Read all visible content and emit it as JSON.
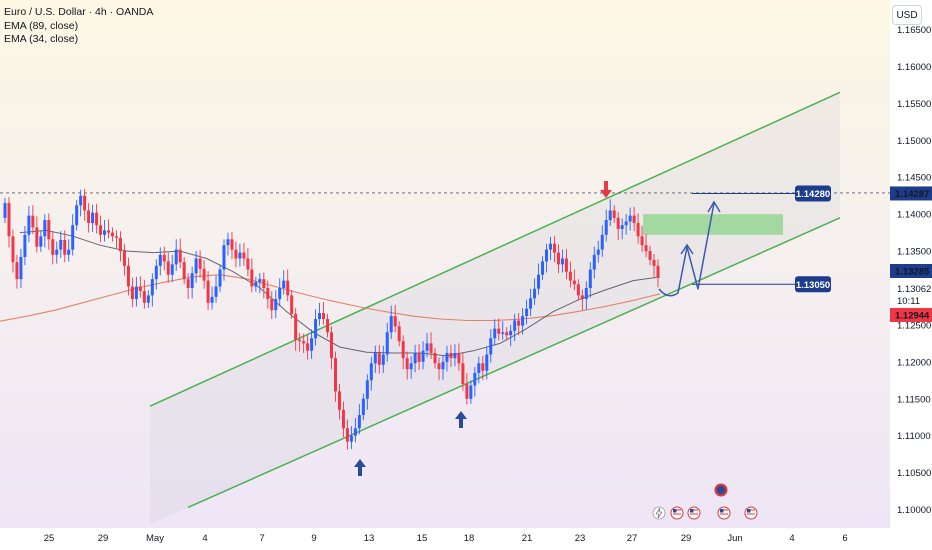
{
  "legend": {
    "symbol_line": "Euro / U.S. Dollar · 4h · OANDA",
    "ema_slow": "EMA (89, close)",
    "ema_fast": "EMA (34, close)"
  },
  "currency_button": "USD",
  "colors": {
    "up_candle": "#2962ff",
    "down_candle": "#f23645",
    "channel_line": "#4caf50",
    "ema_89": "#e0704f",
    "ema_34": "#4a4e5a",
    "arrow_down": "#e53945",
    "arrow_up": "#2a4a9c",
    "target_zone": "#8bd48a",
    "projection": "#3a5ab0",
    "price_tag_dark": "#1e3c8c",
    "price_tag_red": "#f23645"
  },
  "price_scale": {
    "labels": [
      "1.16500",
      "1.16000",
      "1.15500",
      "1.15000",
      "1.14500",
      "1.14000",
      "1.13500",
      "1.13000",
      "1.12500",
      "1.12000",
      "1.11500",
      "1.11000",
      "1.10500",
      "1.10000"
    ],
    "current_price": "1.13285",
    "countdown_price": "1.13062",
    "countdown": "10:11",
    "ema_price": "1.12944",
    "resistance_price": "1.14287"
  },
  "time_axis": {
    "labels": [
      "25",
      "29",
      "May",
      "4",
      "7",
      "9",
      "13",
      "15",
      "18",
      "21",
      "23",
      "27",
      "29",
      "Jun",
      "4",
      "6"
    ]
  },
  "annotations": {
    "resistance_label": "1.14280",
    "support_label": "1.13050"
  },
  "chart_data": {
    "type": "candlestick",
    "symbol": "Euro / U.S. Dollar",
    "timeframe": "4h",
    "source": "OANDA",
    "ylim": [
      1.0975,
      1.169
    ],
    "x_dates": [
      "Apr 25",
      "Apr 29",
      "May",
      "May 4",
      "May 7",
      "May 9",
      "May 13",
      "May 15",
      "May 18",
      "May 21",
      "May 23",
      "May 27",
      "May 29",
      "Jun",
      "Jun 4",
      "Jun 6"
    ],
    "candles": [
      {
        "o": 1.1395,
        "c": 1.1415
      },
      {
        "o": 1.1415,
        "c": 1.137
      },
      {
        "o": 1.137,
        "c": 1.1335
      },
      {
        "o": 1.1335,
        "c": 1.1312
      },
      {
        "o": 1.1312,
        "c": 1.1342
      },
      {
        "o": 1.1342,
        "c": 1.1372
      },
      {
        "o": 1.1372,
        "c": 1.1398
      },
      {
        "o": 1.1398,
        "c": 1.1382
      },
      {
        "o": 1.1382,
        "c": 1.1356
      },
      {
        "o": 1.1356,
        "c": 1.137
      },
      {
        "o": 1.137,
        "c": 1.1392
      },
      {
        "o": 1.1392,
        "c": 1.1366
      },
      {
        "o": 1.1366,
        "c": 1.1345
      },
      {
        "o": 1.1345,
        "c": 1.1352
      },
      {
        "o": 1.1352,
        "c": 1.1365
      },
      {
        "o": 1.1365,
        "c": 1.1345
      },
      {
        "o": 1.1345,
        "c": 1.1352
      },
      {
        "o": 1.1352,
        "c": 1.1385
      },
      {
        "o": 1.1385,
        "c": 1.1412
      },
      {
        "o": 1.1412,
        "c": 1.1425
      },
      {
        "o": 1.1425,
        "c": 1.1405
      },
      {
        "o": 1.1405,
        "c": 1.1388
      },
      {
        "o": 1.1388,
        "c": 1.1402
      },
      {
        "o": 1.1402,
        "c": 1.1385
      },
      {
        "o": 1.1385,
        "c": 1.1372
      },
      {
        "o": 1.1372,
        "c": 1.1378
      },
      {
        "o": 1.1378,
        "c": 1.1375
      },
      {
        "o": 1.1375,
        "c": 1.137
      },
      {
        "o": 1.137,
        "c": 1.1368
      },
      {
        "o": 1.1368,
        "c": 1.135
      },
      {
        "o": 1.135,
        "c": 1.133
      },
      {
        "o": 1.133,
        "c": 1.1302
      },
      {
        "o": 1.1302,
        "c": 1.1285
      },
      {
        "o": 1.1285,
        "c": 1.1302
      },
      {
        "o": 1.1302,
        "c": 1.1296
      },
      {
        "o": 1.1296,
        "c": 1.128
      },
      {
        "o": 1.128,
        "c": 1.129
      },
      {
        "o": 1.129,
        "c": 1.1312
      },
      {
        "o": 1.1312,
        "c": 1.133
      },
      {
        "o": 1.133,
        "c": 1.1345
      },
      {
        "o": 1.1345,
        "c": 1.1336
      },
      {
        "o": 1.1336,
        "c": 1.1318
      },
      {
        "o": 1.1318,
        "c": 1.1332
      },
      {
        "o": 1.1332,
        "c": 1.1352
      },
      {
        "o": 1.1352,
        "c": 1.1335
      },
      {
        "o": 1.1335,
        "c": 1.1312
      },
      {
        "o": 1.1312,
        "c": 1.13
      },
      {
        "o": 1.13,
        "c": 1.132
      },
      {
        "o": 1.132,
        "c": 1.134
      },
      {
        "o": 1.134,
        "c": 1.1326
      },
      {
        "o": 1.1326,
        "c": 1.131
      },
      {
        "o": 1.131,
        "c": 1.128
      },
      {
        "o": 1.128,
        "c": 1.1288
      },
      {
        "o": 1.1288,
        "c": 1.1302
      },
      {
        "o": 1.1302,
        "c": 1.1325
      },
      {
        "o": 1.1325,
        "c": 1.1358
      },
      {
        "o": 1.1358,
        "c": 1.1366
      },
      {
        "o": 1.1366,
        "c": 1.1352
      },
      {
        "o": 1.1352,
        "c": 1.134
      },
      {
        "o": 1.134,
        "c": 1.1348
      },
      {
        "o": 1.1348,
        "c": 1.134
      },
      {
        "o": 1.134,
        "c": 1.1325
      },
      {
        "o": 1.1325,
        "c": 1.1302
      },
      {
        "o": 1.1302,
        "c": 1.1308
      },
      {
        "o": 1.1308,
        "c": 1.1312
      },
      {
        "o": 1.1312,
        "c": 1.13
      },
      {
        "o": 1.13,
        "c": 1.1285
      },
      {
        "o": 1.1285,
        "c": 1.127
      },
      {
        "o": 1.127,
        "c": 1.1285
      },
      {
        "o": 1.1285,
        "c": 1.13
      },
      {
        "o": 1.13,
        "c": 1.131
      },
      {
        "o": 1.131,
        "c": 1.129
      },
      {
        "o": 1.129,
        "c": 1.1265
      },
      {
        "o": 1.1265,
        "c": 1.123
      },
      {
        "o": 1.123,
        "c": 1.1228
      },
      {
        "o": 1.1228,
        "c": 1.1225
      },
      {
        "o": 1.1225,
        "c": 1.1215
      },
      {
        "o": 1.1215,
        "c": 1.1232
      },
      {
        "o": 1.1232,
        "c": 1.1258
      },
      {
        "o": 1.1258,
        "c": 1.1266
      },
      {
        "o": 1.1266,
        "c": 1.1258
      },
      {
        "o": 1.1258,
        "c": 1.124
      },
      {
        "o": 1.124,
        "c": 1.1205
      },
      {
        "o": 1.1205,
        "c": 1.116
      },
      {
        "o": 1.116,
        "c": 1.1135
      },
      {
        "o": 1.1135,
        "c": 1.111
      },
      {
        "o": 1.111,
        "c": 1.1092
      },
      {
        "o": 1.1092,
        "c": 1.11
      },
      {
        "o": 1.11,
        "c": 1.111
      },
      {
        "o": 1.111,
        "c": 1.1128
      },
      {
        "o": 1.1128,
        "c": 1.115
      },
      {
        "o": 1.115,
        "c": 1.1175
      },
      {
        "o": 1.1175,
        "c": 1.1198
      },
      {
        "o": 1.1198,
        "c": 1.1212
      },
      {
        "o": 1.1212,
        "c": 1.1196
      },
      {
        "o": 1.1196,
        "c": 1.121
      },
      {
        "o": 1.121,
        "c": 1.124
      },
      {
        "o": 1.124,
        "c": 1.1262
      },
      {
        "o": 1.1262,
        "c": 1.1248
      },
      {
        "o": 1.1248,
        "c": 1.1228
      },
      {
        "o": 1.1228,
        "c": 1.1205
      },
      {
        "o": 1.1205,
        "c": 1.119
      },
      {
        "o": 1.119,
        "c": 1.1198
      },
      {
        "o": 1.1198,
        "c": 1.1212
      },
      {
        "o": 1.1212,
        "c": 1.12
      },
      {
        "o": 1.12,
        "c": 1.1215
      },
      {
        "o": 1.1215,
        "c": 1.1225
      },
      {
        "o": 1.1225,
        "c": 1.1212
      },
      {
        "o": 1.1212,
        "c": 1.1198
      },
      {
        "o": 1.1198,
        "c": 1.119
      },
      {
        "o": 1.119,
        "c": 1.12
      },
      {
        "o": 1.12,
        "c": 1.1212
      },
      {
        "o": 1.1212,
        "c": 1.1205
      },
      {
        "o": 1.1205,
        "c": 1.1212
      },
      {
        "o": 1.1212,
        "c": 1.1198
      },
      {
        "o": 1.1198,
        "c": 1.117
      },
      {
        "o": 1.117,
        "c": 1.115
      },
      {
        "o": 1.115,
        "c": 1.1168
      },
      {
        "o": 1.1168,
        "c": 1.1185
      },
      {
        "o": 1.1185,
        "c": 1.1198
      },
      {
        "o": 1.1198,
        "c": 1.1188
      },
      {
        "o": 1.1188,
        "c": 1.121
      },
      {
        "o": 1.121,
        "c": 1.1232
      },
      {
        "o": 1.1232,
        "c": 1.1245
      },
      {
        "o": 1.1245,
        "c": 1.1238
      },
      {
        "o": 1.1238,
        "c": 1.124
      },
      {
        "o": 1.124,
        "c": 1.1236
      },
      {
        "o": 1.1236,
        "c": 1.1242
      },
      {
        "o": 1.1242,
        "c": 1.1256
      },
      {
        "o": 1.1256,
        "c": 1.1249
      },
      {
        "o": 1.1249,
        "c": 1.1262
      },
      {
        "o": 1.1262,
        "c": 1.1272
      },
      {
        "o": 1.1272,
        "c": 1.1286
      },
      {
        "o": 1.1286,
        "c": 1.1299
      },
      {
        "o": 1.1299,
        "c": 1.1318
      },
      {
        "o": 1.1318,
        "c": 1.1336
      },
      {
        "o": 1.1336,
        "c": 1.1352
      },
      {
        "o": 1.1352,
        "c": 1.136
      },
      {
        "o": 1.136,
        "c": 1.1348
      },
      {
        "o": 1.1348,
        "c": 1.1332
      },
      {
        "o": 1.1332,
        "c": 1.134
      },
      {
        "o": 1.134,
        "c": 1.1322
      },
      {
        "o": 1.1322,
        "c": 1.131
      },
      {
        "o": 1.131,
        "c": 1.1305
      },
      {
        "o": 1.1305,
        "c": 1.129
      },
      {
        "o": 1.129,
        "c": 1.1285
      },
      {
        "o": 1.1285,
        "c": 1.13
      },
      {
        "o": 1.13,
        "c": 1.1325
      },
      {
        "o": 1.1325,
        "c": 1.1345
      },
      {
        "o": 1.1345,
        "c": 1.1352
      },
      {
        "o": 1.1352,
        "c": 1.1372
      },
      {
        "o": 1.1372,
        "c": 1.1392
      },
      {
        "o": 1.1392,
        "c": 1.1405
      },
      {
        "o": 1.1405,
        "c": 1.1395
      },
      {
        "o": 1.1395,
        "c": 1.138
      },
      {
        "o": 1.138,
        "c": 1.1385
      },
      {
        "o": 1.1385,
        "c": 1.139
      },
      {
        "o": 1.139,
        "c": 1.1398
      },
      {
        "o": 1.1398,
        "c": 1.1388
      },
      {
        "o": 1.1388,
        "c": 1.137
      },
      {
        "o": 1.137,
        "c": 1.1358
      },
      {
        "o": 1.1358,
        "c": 1.135
      },
      {
        "o": 1.135,
        "c": 1.1338
      },
      {
        "o": 1.1338,
        "c": 1.133
      },
      {
        "o": 1.133,
        "c": 1.1315
      }
    ],
    "ema_89": [
      1.1255,
      1.1262,
      1.127,
      1.128,
      1.129,
      1.13,
      1.1308,
      1.1315,
      1.1318,
      1.1312,
      1.1302,
      1.1292,
      1.1283,
      1.1275,
      1.1268,
      1.1262,
      1.1258,
      1.1256,
      1.1256,
      1.1258,
      1.1262,
      1.1268,
      1.1275,
      1.1283,
      1.1292
    ],
    "ema_34": [
      1.1375,
      1.1378,
      1.137,
      1.1358,
      1.135,
      1.1348,
      1.135,
      1.134,
      1.1322,
      1.13,
      1.1268,
      1.124,
      1.122,
      1.1213,
      1.1212,
      1.1212,
      1.1208,
      1.1215,
      1.1225,
      1.1245,
      1.1268,
      1.1285,
      1.1298,
      1.131,
      1.1315
    ],
    "channel": {
      "upper": [
        [
          0,
          1.114
        ],
        [
          1,
          1.1565
        ]
      ],
      "lower": [
        [
          0,
          1.098
        ],
        [
          1,
          1.1395
        ]
      ]
    },
    "resistance_level": 1.14287,
    "support_level": 1.1305,
    "target_zone": [
      1.1372,
      1.14
    ]
  }
}
